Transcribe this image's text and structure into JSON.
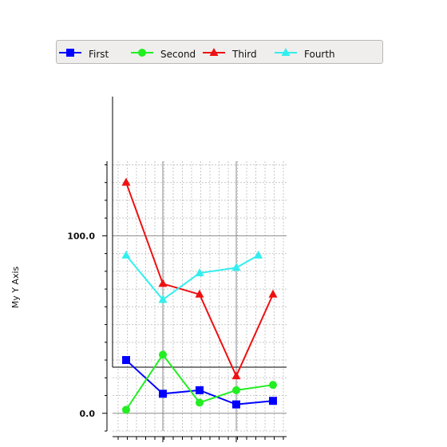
{
  "chart_data": {
    "type": "line",
    "ylabel": "My Y Axis",
    "yticks": [
      "0.0",
      "100.0"
    ],
    "x": [
      1,
      2,
      3,
      4,
      5
    ],
    "ylim": [
      -10,
      142
    ],
    "legend_position": "top",
    "grid": true,
    "series": [
      {
        "name": "First",
        "color": "#0000ff",
        "marker": "square",
        "x": [
          1,
          2,
          3,
          4,
          5
        ],
        "values": [
          30,
          11,
          13,
          5,
          7
        ]
      },
      {
        "name": "Second",
        "color": "#22ee22",
        "marker": "circle",
        "x": [
          1,
          2,
          3,
          4,
          5
        ],
        "values": [
          2,
          33,
          6,
          13,
          16
        ]
      },
      {
        "name": "Third",
        "color": "#ee1111",
        "marker": "triangle",
        "x": [
          1,
          2,
          3,
          4,
          5
        ],
        "values": [
          130,
          73,
          67,
          21,
          67
        ]
      },
      {
        "name": "Fourth",
        "color": "#33eeee",
        "marker": "triangle",
        "x": [
          1,
          2,
          3,
          4,
          4.6
        ],
        "values": [
          89,
          64,
          79,
          82,
          89
        ]
      }
    ]
  }
}
